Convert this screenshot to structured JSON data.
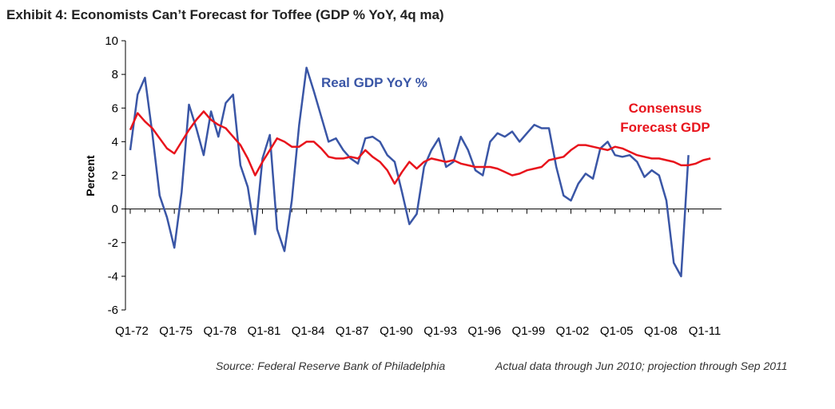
{
  "chart_data": {
    "type": "line",
    "title": "Exhibit 4: Economists Can’t Forecast for Toffee (GDP % YoY, 4q ma)",
    "y_label": "Percent",
    "notes": [
      "Source: Federal Reserve Bank of Philadelphia",
      "Actual data through Jun 2010; projection through Sep 2011"
    ],
    "categories": [
      "Q1-72",
      null,
      null,
      null,
      null,
      null,
      "Q1-75",
      null,
      null,
      null,
      null,
      null,
      "Q1-78",
      null,
      null,
      null,
      null,
      null,
      "Q1-81",
      null,
      null,
      null,
      null,
      null,
      "Q1-84",
      null,
      null,
      null,
      null,
      null,
      "Q1-87",
      null,
      null,
      null,
      null,
      null,
      "Q1-90",
      null,
      null,
      null,
      null,
      null,
      "Q1-93",
      null,
      null,
      null,
      null,
      null,
      "Q1-96",
      null,
      null,
      null,
      null,
      null,
      "Q1-99",
      null,
      null,
      null,
      null,
      null,
      "Q1-02",
      null,
      null,
      null,
      null,
      null,
      "Q1-05",
      null,
      null,
      null,
      null,
      null,
      "Q1-08",
      null,
      null,
      null,
      null,
      null,
      "Q1-11",
      null
    ],
    "series": [
      {
        "name": "Real GDP YoY %",
        "color": "#3a56a6",
        "values": [
          3.5,
          6.8,
          7.8,
          4.5,
          0.8,
          -0.5,
          -2.3,
          1.0,
          6.2,
          4.8,
          3.2,
          5.8,
          4.3,
          6.3,
          6.8,
          2.6,
          1.3,
          -1.5,
          3.0,
          4.4,
          -1.2,
          -2.5,
          0.5,
          5.0,
          8.4,
          7.0,
          5.5,
          4.0,
          4.2,
          3.5,
          3.0,
          2.7,
          4.2,
          4.3,
          4.0,
          3.2,
          2.8,
          1.0,
          -0.9,
          -0.3,
          2.5,
          3.5,
          4.2,
          2.5,
          2.8,
          4.3,
          3.5,
          2.3,
          2.0,
          4.0,
          4.5,
          4.3,
          4.6,
          4.0,
          4.5,
          5.0,
          4.8,
          4.8,
          2.5,
          0.8,
          0.5,
          1.5,
          2.1,
          1.8,
          3.6,
          4.0,
          3.2,
          3.1,
          3.2,
          2.8,
          1.9,
          2.3,
          2.0,
          0.5,
          -3.2,
          -4.0,
          3.2,
          null,
          null,
          null
        ]
      },
      {
        "name": "Consensus Forecast GDP",
        "color": "#e8141c",
        "values": [
          4.7,
          5.7,
          5.2,
          4.8,
          4.2,
          3.6,
          3.3,
          4.0,
          4.7,
          5.3,
          5.8,
          5.3,
          5.0,
          4.8,
          4.3,
          3.8,
          3.0,
          2.0,
          2.8,
          3.5,
          4.2,
          4.0,
          3.7,
          3.7,
          4.0,
          4.0,
          3.6,
          3.1,
          3.0,
          3.0,
          3.1,
          3.0,
          3.5,
          3.1,
          2.8,
          2.3,
          1.5,
          2.2,
          2.8,
          2.4,
          2.8,
          3.0,
          2.9,
          2.8,
          2.9,
          2.7,
          2.6,
          2.5,
          2.5,
          2.5,
          2.4,
          2.2,
          2.0,
          2.1,
          2.3,
          2.4,
          2.5,
          2.9,
          3.0,
          3.1,
          3.5,
          3.8,
          3.8,
          3.7,
          3.6,
          3.5,
          3.7,
          3.6,
          3.4,
          3.2,
          3.1,
          3.0,
          3.0,
          2.9,
          2.8,
          2.6,
          2.6,
          2.7,
          2.9,
          3.0
        ]
      }
    ],
    "ylim": [
      -6,
      10
    ],
    "yticks": [
      -6,
      -4,
      -2,
      0,
      2,
      4,
      6,
      8,
      10
    ],
    "grid": false
  }
}
